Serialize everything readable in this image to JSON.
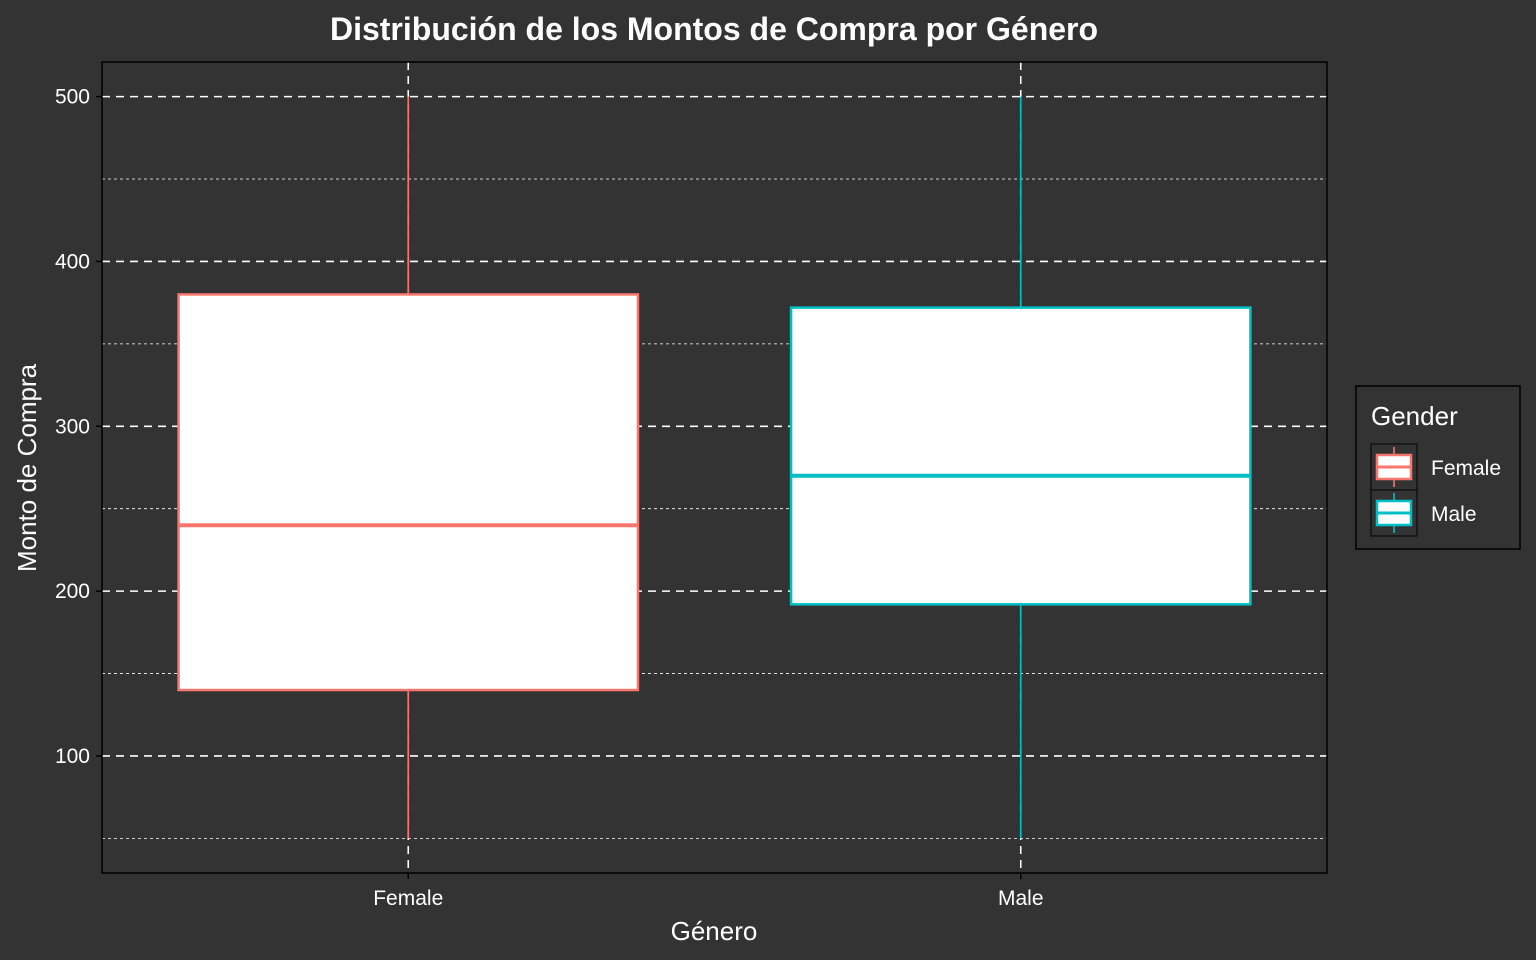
{
  "chart_data": {
    "type": "boxplot",
    "title": "Distribución de los Montos de Compra por Género",
    "xlabel": "Género",
    "ylabel": "Monto de Compra",
    "ylim": [
      29,
      521
    ],
    "yticks": [
      100,
      200,
      300,
      400,
      500
    ],
    "ygrid_minor": [
      50,
      150,
      250,
      350,
      450
    ],
    "grid": true,
    "categories": [
      "Female",
      "Male"
    ],
    "boxes": [
      {
        "category": "Female",
        "min": 50,
        "q1": 140,
        "median": 240,
        "q3": 380,
        "max": 500,
        "color": "#F8766D"
      },
      {
        "category": "Male",
        "min": 50,
        "q1": 192,
        "median": 270,
        "q3": 372,
        "max": 500,
        "color": "#00BFC4"
      }
    ],
    "legend": {
      "title": "Gender",
      "position": "right",
      "items": [
        {
          "label": "Female",
          "color": "#F8766D"
        },
        {
          "label": "Male",
          "color": "#00BFC4"
        }
      ]
    },
    "colors": {
      "background": "#333333",
      "panel_border": "#000000",
      "grid": "#ffffff",
      "box_fill": "#ffffff",
      "text": "#ffffff"
    }
  }
}
